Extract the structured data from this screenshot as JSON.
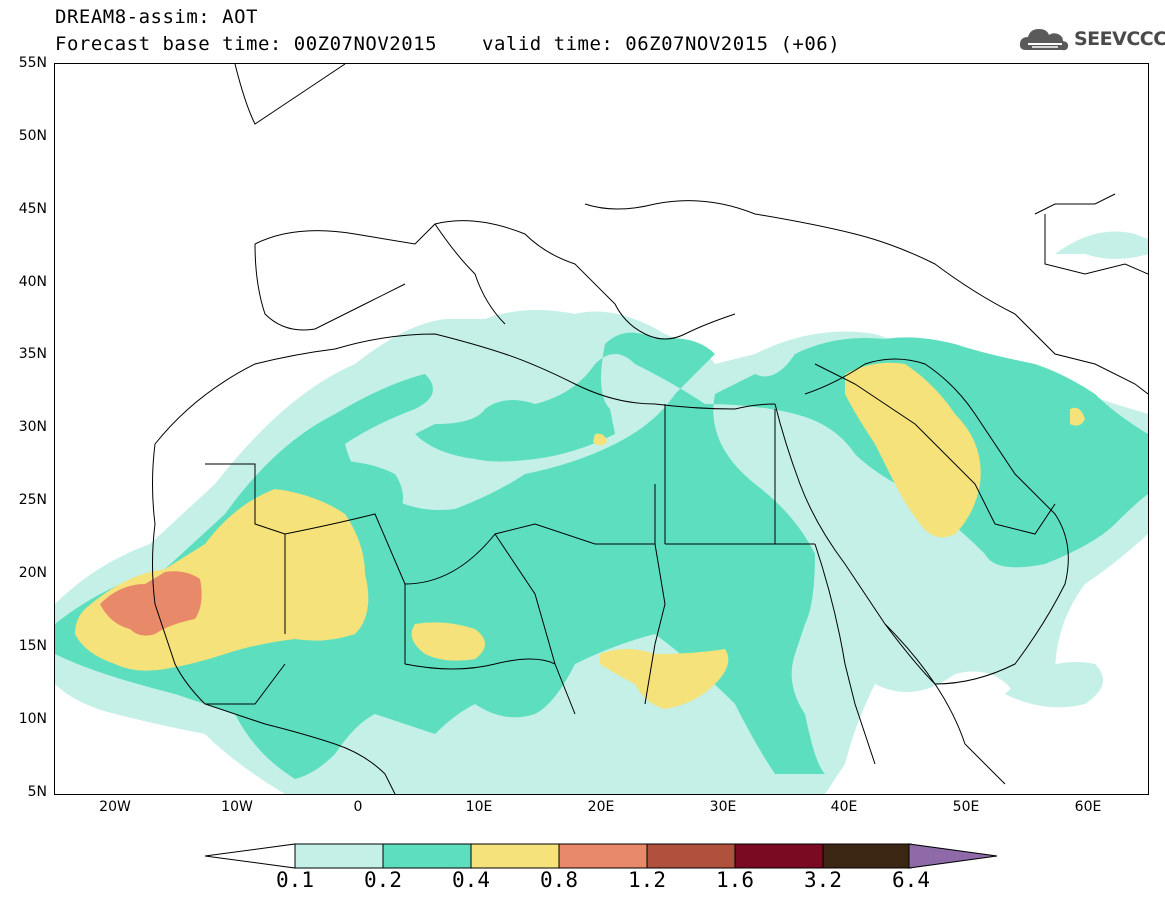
{
  "header": {
    "title": "DREAM8-assim: AOT",
    "base_time": "Forecast base time: 00Z07NOV2015",
    "valid_time": "valid time: 06Z07NOV2015 (+06)"
  },
  "logo": {
    "text": "SEEVCCC",
    "icon": "cloud-icon"
  },
  "map": {
    "lat_labels": [
      "55N",
      "50N",
      "45N",
      "40N",
      "35N",
      "30N",
      "25N",
      "20N",
      "15N",
      "10N",
      "5N"
    ],
    "lon_labels": [
      "20W",
      "10W",
      "0",
      "10E",
      "20E",
      "30E",
      "40E",
      "50E",
      "60E"
    ],
    "extent": {
      "lon": [
        -25,
        65
      ],
      "lat": [
        5,
        55
      ]
    }
  },
  "colorbar": {
    "levels": [
      "0.1",
      "0.2",
      "0.4",
      "0.8",
      "1.2",
      "1.6",
      "3.2",
      "6.4"
    ],
    "colors": [
      "#ffffff",
      "#c4f0e8",
      "#5ddfbf",
      "#f5e27a",
      "#e8896a",
      "#b0513e",
      "#7a0a22",
      "#3b2614",
      "#8e6aa8"
    ]
  }
}
